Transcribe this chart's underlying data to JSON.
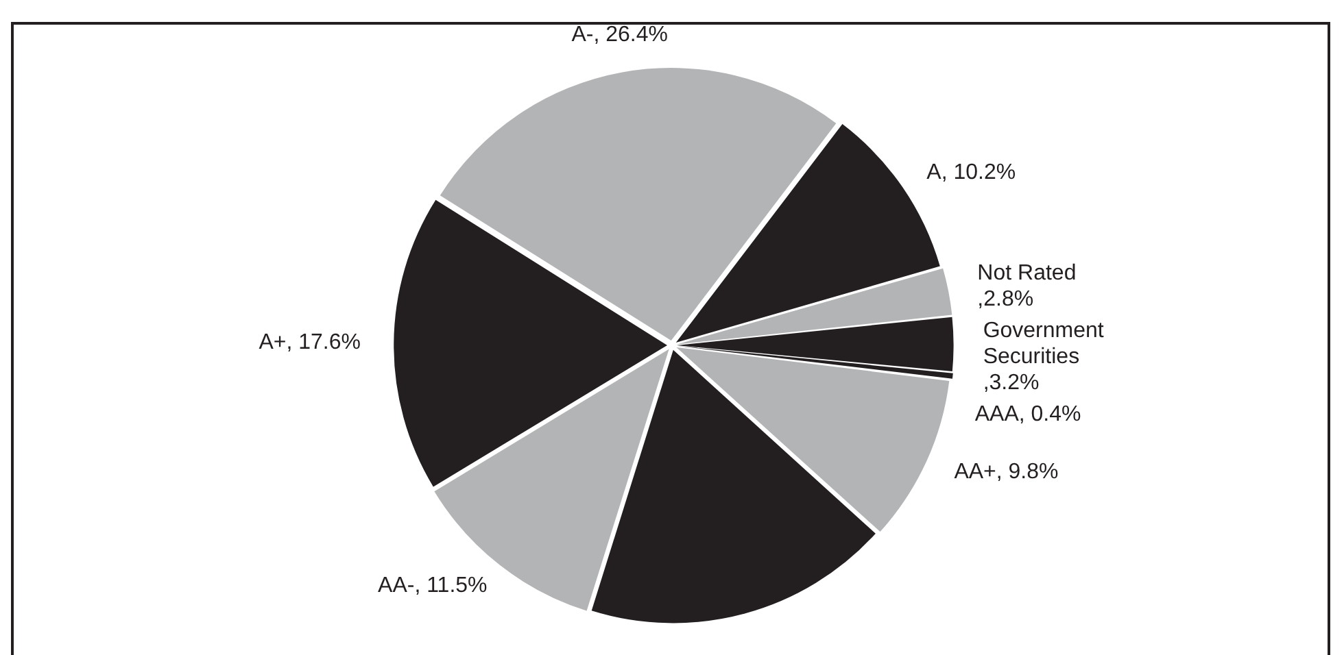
{
  "chart_data": {
    "type": "pie",
    "categories": [
      "Government Securities",
      "AAA",
      "AA+",
      null,
      "AA-",
      "A+",
      "A-",
      "A",
      "Not Rated"
    ],
    "values": [
      3.2,
      0.4,
      9.8,
      18.1,
      11.5,
      17.6,
      26.4,
      10.2,
      2.8
    ],
    "colors": [
      "#231f20",
      "#231f20",
      "#b3b4b6",
      "#231f20",
      "#b3b4b6",
      "#231f20",
      "#b3b4b6",
      "#231f20",
      "#b3b4b6"
    ],
    "value_labels": [
      " ,3.2%",
      ", 0.4%",
      ", 9.8%",
      null,
      ", 11.5%",
      ", 17.6%",
      ", 26.4%",
      ", 10.2%",
      " ,2.8%"
    ],
    "legend": false
  }
}
